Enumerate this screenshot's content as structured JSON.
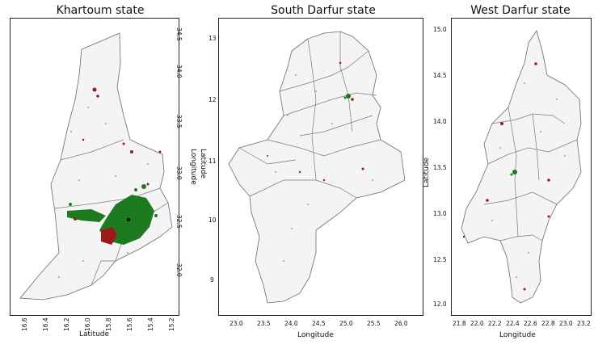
{
  "panels": [
    {
      "title": "Khartoum state",
      "xlabel": "Latitude",
      "ylabel_right": "Longitude",
      "ylabel_left": "Latitude",
      "x_ticks": [
        "16.6",
        "16.4",
        "16.2",
        "16.0",
        "15.8",
        "15.6",
        "15.4",
        "15.2"
      ],
      "y_ticks": [
        "34.5",
        "34.0",
        "33.5",
        "33.0",
        "32.5",
        "32.0"
      ]
    },
    {
      "title": "South Darfur state",
      "xlabel": "Longitude",
      "x_ticks": [
        "23.0",
        "23.5",
        "24.0",
        "24.5",
        "25.0",
        "25.5",
        "26.0"
      ],
      "y_ticks": [
        "13",
        "12",
        "11",
        "10",
        "9"
      ]
    },
    {
      "title": "West Darfur state",
      "xlabel": "Longitude",
      "ylabel": "Latitude",
      "x_ticks": [
        "21.8",
        "22.0",
        "22.2",
        "22.4",
        "22.6",
        "22.8",
        "23.0",
        "23.2"
      ],
      "y_ticks": [
        "15.0",
        "14.5",
        "14.0",
        "13.5",
        "13.0",
        "12.5",
        "12.0"
      ]
    }
  ],
  "legend_colors": {
    "boundary": "#6b6b6b",
    "land_fill": "#f4f4f4",
    "vegetation_green": "#1e7a1e",
    "settlement_red": "#9c1a1a",
    "scatter_red": "#c98a8a"
  }
}
